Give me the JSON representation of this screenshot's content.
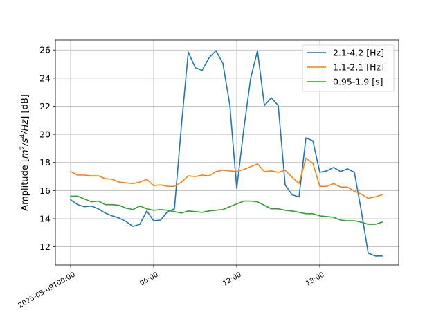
{
  "chart_data": {
    "type": "line",
    "xlabel": "",
    "ylabel_parts": [
      "Amplitude [",
      "m",
      "2",
      "/",
      "s",
      "4",
      "/",
      "Hz",
      "] [dB]"
    ],
    "x_ticks": [
      {
        "hour": 0,
        "label": "2025-05-09T00:00"
      },
      {
        "hour": 6,
        "label": "06:00"
      },
      {
        "hour": 12,
        "label": "12:00"
      },
      {
        "hour": 18,
        "label": "18:00"
      }
    ],
    "xlim_hours": [
      -1.1,
      23.7
    ],
    "ylim": [
      10.7,
      26.7
    ],
    "y_ticks": [
      12,
      14,
      16,
      18,
      20,
      22,
      24,
      26
    ],
    "grid": true,
    "legend_position": "top-right",
    "x_hours": [
      0,
      0.5,
      1,
      1.5,
      2,
      2.5,
      3,
      3.5,
      4,
      4.5,
      5,
      5.5,
      6,
      6.5,
      7,
      7.5,
      8,
      8.5,
      9,
      9.5,
      10,
      10.5,
      11,
      11.5,
      12,
      12.5,
      13,
      13.5,
      14,
      14.5,
      15,
      15.5,
      16,
      16.5,
      17,
      17.5,
      18,
      18.5,
      19,
      19.5,
      20,
      20.5,
      21,
      21.5,
      22,
      22.5
    ],
    "series": [
      {
        "name": "2.1-4.2 [Hz]",
        "color": "#1f77b4",
        "values": [
          15.35,
          15.0,
          14.85,
          14.9,
          14.7,
          14.4,
          14.2,
          14.05,
          13.8,
          13.45,
          13.6,
          14.55,
          13.85,
          13.9,
          14.5,
          14.7,
          20.6,
          25.85,
          24.75,
          24.55,
          25.45,
          25.95,
          25.05,
          22.1,
          16.15,
          20.3,
          23.95,
          25.95,
          22.05,
          22.6,
          22.05,
          16.4,
          15.7,
          15.55,
          19.75,
          19.55,
          17.3,
          17.4,
          17.65,
          17.35,
          17.55,
          17.3,
          14.55,
          11.55,
          11.35,
          11.35
        ]
      },
      {
        "name": "1.1-2.1 [Hz]",
        "color": "#ff7f0e",
        "values": [
          17.35,
          17.1,
          17.1,
          17.05,
          17.05,
          16.85,
          16.8,
          16.6,
          16.55,
          16.5,
          16.6,
          16.8,
          16.35,
          16.4,
          16.3,
          16.3,
          16.6,
          17.05,
          17.0,
          17.1,
          17.05,
          17.35,
          17.45,
          17.4,
          17.35,
          17.5,
          17.7,
          17.9,
          17.35,
          17.4,
          17.3,
          17.45,
          16.95,
          16.5,
          18.3,
          17.95,
          16.3,
          16.3,
          16.5,
          16.25,
          16.25,
          15.95,
          15.75,
          15.45,
          15.55,
          15.7
        ]
      },
      {
        "name": "0.95-1.9 [s]",
        "color": "#2ca02c",
        "values": [
          15.6,
          15.6,
          15.4,
          15.2,
          15.25,
          15.0,
          15.0,
          14.95,
          14.75,
          14.65,
          14.9,
          14.7,
          14.6,
          14.65,
          14.6,
          14.5,
          14.4,
          14.55,
          14.5,
          14.45,
          14.55,
          14.6,
          14.65,
          14.85,
          15.05,
          15.25,
          15.25,
          15.2,
          14.95,
          14.7,
          14.7,
          14.6,
          14.55,
          14.45,
          14.35,
          14.35,
          14.2,
          14.15,
          14.1,
          13.9,
          13.85,
          13.85,
          13.75,
          13.6,
          13.6,
          13.75
        ]
      }
    ]
  }
}
